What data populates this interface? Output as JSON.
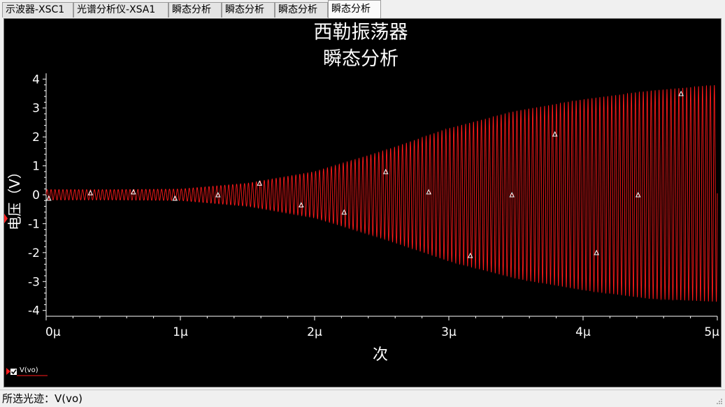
{
  "tabs": [
    {
      "label": "示波器-XSC1",
      "active": false
    },
    {
      "label": "光谱分析仪-XSA1",
      "active": false
    },
    {
      "label": "瞬态分析",
      "active": false
    },
    {
      "label": "瞬态分析",
      "active": false
    },
    {
      "label": "瞬态分析",
      "active": false
    },
    {
      "label": "瞬态分析",
      "active": true
    }
  ],
  "status": {
    "label": "所选光迹：V(vo)"
  },
  "legend": {
    "label": "V(vo)",
    "checked": true
  },
  "colors": {
    "trace": "#ff1a1a",
    "background": "#000000",
    "axis": "#ffffff",
    "panel": "#f0f0f0"
  },
  "chart_data": {
    "type": "line",
    "title": "西勒振荡器",
    "subtitle": "瞬态分析",
    "xlabel": "次",
    "ylabel": "电压（V）",
    "xlim": [
      0,
      5
    ],
    "ylim": [
      -4.2,
      4.2
    ],
    "x_ticks": [
      {
        "v": 0,
        "label": "0μ"
      },
      {
        "v": 1,
        "label": "1μ"
      },
      {
        "v": 2,
        "label": "2μ"
      },
      {
        "v": 3,
        "label": "3μ"
      },
      {
        "v": 4,
        "label": "4μ"
      },
      {
        "v": 5,
        "label": "5μ"
      }
    ],
    "y_ticks": [
      {
        "v": 4,
        "label": "4"
      },
      {
        "v": 3,
        "label": "3"
      },
      {
        "v": 2,
        "label": "2"
      },
      {
        "v": 1,
        "label": "1"
      },
      {
        "v": 0,
        "label": "0"
      },
      {
        "v": -1,
        "label": "-1"
      },
      {
        "v": -2,
        "label": "-2"
      },
      {
        "v": -3,
        "label": "-3"
      },
      {
        "v": -4,
        "label": "-4"
      }
    ],
    "series": [
      {
        "name": "V(vo)",
        "color": "#ff1a1a",
        "envelope": {
          "t": [
            0,
            0.5,
            1.0,
            1.5,
            2.0,
            2.5,
            3.0,
            3.5,
            4.0,
            4.5,
            5.0
          ],
          "upper": [
            0.18,
            0.18,
            0.2,
            0.4,
            0.8,
            1.5,
            2.3,
            2.9,
            3.3,
            3.6,
            3.8
          ],
          "lower": [
            -0.18,
            -0.18,
            -0.2,
            -0.4,
            -0.8,
            -1.5,
            -2.3,
            -2.9,
            -3.3,
            -3.6,
            -3.7
          ]
        },
        "cycles": 170,
        "markers": [
          [
            0.02,
            -0.12
          ],
          [
            0.33,
            0.07
          ],
          [
            0.65,
            0.1
          ],
          [
            0.96,
            -0.12
          ],
          [
            1.28,
            0.0
          ],
          [
            1.59,
            0.4
          ],
          [
            1.9,
            -0.35
          ],
          [
            2.22,
            -0.6
          ],
          [
            2.53,
            0.8
          ],
          [
            2.85,
            0.1
          ],
          [
            3.16,
            -2.1
          ],
          [
            3.47,
            0.0
          ],
          [
            3.79,
            2.1
          ],
          [
            4.1,
            -2.0
          ],
          [
            4.41,
            0.0
          ],
          [
            4.73,
            3.5
          ]
        ]
      }
    ]
  }
}
